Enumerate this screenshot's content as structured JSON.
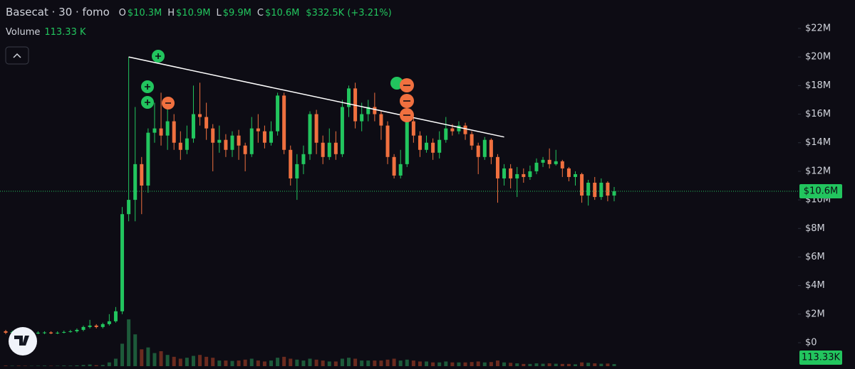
{
  "chart_data": {
    "type": "candlestick",
    "legend": {
      "symbol": "Basecat · 30 · fomo",
      "ohlc": [
        {
          "key": "O",
          "value": "$10.3M"
        },
        {
          "key": "H",
          "value": "$10.9M"
        },
        {
          "key": "L",
          "value": "$9.9M"
        },
        {
          "key": "C",
          "value": "$10.6M"
        }
      ],
      "change": "$332.5K (+3.21%)",
      "volume_title": "Volume",
      "volume_value": "113.33 K"
    },
    "ylim": [
      -1.84,
      23.99
    ],
    "yticks": [
      {
        "value": 0,
        "label": "$0"
      },
      {
        "value": 2,
        "label": "$2M"
      },
      {
        "value": 4,
        "label": "$4M"
      },
      {
        "value": 6,
        "label": "$6M"
      },
      {
        "value": 8,
        "label": "$8M"
      },
      {
        "value": 10,
        "label": "$10M"
      },
      {
        "value": 12,
        "label": "$12M"
      },
      {
        "value": 14,
        "label": "$14M"
      },
      {
        "value": 16,
        "label": "$16M"
      },
      {
        "value": 18,
        "label": "$18M"
      },
      {
        "value": 20,
        "label": "$20M"
      },
      {
        "value": 22,
        "label": "$22M"
      }
    ],
    "up_color": "#22c55e",
    "down_color": "#f0703f",
    "volume_up_color": "#1d5a3a",
    "volume_down_color": "#6b2b1f",
    "open": [
      0.8,
      0.7,
      0.75,
      0.7,
      0.6,
      0.65,
      0.7,
      0.72,
      0.65,
      0.7,
      0.75,
      0.8,
      0.9,
      1.1,
      1.2,
      1.1,
      1.3,
      1.5,
      2.2,
      9.0,
      10.0,
      12.5,
      11.0,
      14.7,
      15.0,
      14.5,
      15.5,
      14.0,
      13.5,
      14.3,
      16.0,
      15.8,
      15.0,
      14.0,
      14.2,
      13.5,
      14.5,
      13.8,
      13.2,
      15.0,
      14.8,
      14.0,
      14.8,
      17.3,
      13.5,
      11.5,
      12.5,
      13.2,
      16.0,
      14.0,
      13.0,
      14.0,
      13.2,
      16.5,
      17.8,
      15.5,
      16.0,
      16.5,
      16.0,
      15.2,
      13.0,
      11.7,
      12.5,
      15.5,
      14.5,
      13.5,
      14.0,
      13.3,
      14.2,
      15.0,
      14.8,
      15.2,
      14.6,
      13.8,
      13.0,
      14.2,
      13.0,
      11.5,
      12.2,
      11.5,
      11.8,
      11.6,
      12.0,
      12.6,
      12.8,
      12.5,
      12.7,
      12.2,
      11.6,
      11.8,
      10.3,
      11.2,
      10.2,
      11.2,
      10.3
    ],
    "high": [
      0.9,
      0.85,
      0.8,
      0.75,
      0.75,
      0.8,
      0.8,
      0.8,
      0.8,
      0.85,
      0.9,
      1.0,
      1.2,
      1.6,
      1.3,
      1.4,
      2.0,
      2.5,
      9.5,
      20.0,
      16.5,
      13.0,
      15.0,
      16.8,
      17.5,
      16.5,
      16.0,
      14.8,
      15.2,
      18.0,
      18.2,
      16.8,
      15.3,
      15.2,
      14.6,
      14.8,
      14.9,
      14.0,
      15.8,
      16.0,
      15.2,
      15.5,
      17.5,
      17.5,
      13.8,
      13.2,
      13.8,
      16.2,
      16.3,
      14.5,
      15.0,
      14.8,
      17.0,
      18.0,
      18.2,
      16.8,
      17.0,
      17.5,
      16.2,
      15.5,
      13.2,
      13.5,
      15.8,
      15.8,
      14.8,
      14.5,
      14.3,
      14.8,
      15.8,
      15.3,
      15.5,
      15.4,
      14.8,
      14.0,
      14.4,
      14.3,
      13.2,
      12.5,
      12.5,
      12.3,
      12.2,
      12.4,
      12.9,
      13.0,
      13.6,
      13.5,
      12.8,
      12.3,
      12.0,
      11.9,
      11.4,
      11.6,
      11.5,
      11.3,
      10.9
    ],
    "low": [
      0.6,
      0.6,
      0.6,
      0.5,
      0.55,
      0.6,
      0.6,
      0.6,
      0.6,
      0.65,
      0.7,
      0.7,
      0.8,
      1.0,
      1.0,
      1.0,
      1.2,
      1.4,
      2.0,
      8.5,
      8.5,
      9.0,
      10.5,
      14.0,
      13.8,
      13.5,
      13.5,
      12.8,
      13.2,
      14.0,
      15.2,
      14.2,
      12.0,
      13.3,
      13.0,
      13.0,
      12.8,
      12.0,
      13.0,
      14.0,
      13.6,
      13.8,
      14.5,
      13.2,
      11.0,
      10.0,
      11.8,
      12.8,
      13.2,
      12.5,
      12.8,
      12.8,
      13.0,
      15.8,
      15.0,
      14.8,
      15.5,
      15.5,
      14.2,
      12.5,
      11.5,
      11.5,
      12.3,
      14.0,
      13.0,
      13.3,
      12.8,
      12.9,
      14.0,
      14.5,
      14.6,
      14.2,
      13.5,
      11.8,
      12.8,
      12.5,
      9.8,
      11.0,
      10.8,
      10.2,
      11.2,
      11.4,
      11.8,
      12.3,
      12.2,
      12.4,
      11.6,
      11.3,
      11.0,
      9.8,
      9.6,
      10.0,
      10.0,
      9.9,
      9.9
    ],
    "close": [
      0.7,
      0.75,
      0.7,
      0.6,
      0.65,
      0.7,
      0.72,
      0.65,
      0.7,
      0.75,
      0.8,
      0.9,
      1.1,
      1.2,
      1.1,
      1.3,
      1.5,
      2.2,
      9.0,
      10.0,
      12.5,
      11.0,
      14.7,
      15.0,
      14.5,
      15.5,
      14.0,
      13.5,
      14.3,
      16.0,
      15.8,
      15.0,
      14.0,
      14.2,
      13.5,
      14.5,
      13.8,
      13.2,
      15.0,
      14.8,
      14.0,
      14.8,
      17.3,
      13.5,
      11.5,
      12.5,
      13.2,
      16.0,
      14.0,
      13.0,
      14.0,
      13.2,
      16.5,
      17.8,
      15.5,
      16.0,
      16.5,
      16.0,
      15.2,
      13.0,
      11.7,
      12.5,
      15.5,
      14.5,
      13.5,
      14.0,
      13.3,
      14.2,
      15.0,
      14.8,
      15.2,
      14.6,
      13.8,
      13.0,
      14.2,
      13.0,
      11.5,
      12.2,
      11.5,
      11.8,
      11.6,
      12.0,
      12.6,
      12.8,
      12.5,
      12.7,
      12.2,
      11.6,
      11.8,
      10.3,
      11.2,
      10.2,
      11.2,
      10.3,
      10.6
    ],
    "volume": [
      30,
      20,
      25,
      20,
      15,
      20,
      25,
      20,
      20,
      30,
      25,
      40,
      60,
      90,
      50,
      60,
      200,
      400,
      1200,
      2500,
      1700,
      900,
      1000,
      700,
      800,
      600,
      500,
      400,
      450,
      550,
      600,
      500,
      450,
      300,
      300,
      280,
      300,
      350,
      400,
      300,
      250,
      300,
      450,
      500,
      400,
      350,
      300,
      400,
      350,
      300,
      250,
      250,
      400,
      450,
      400,
      300,
      300,
      300,
      300,
      350,
      400,
      300,
      350,
      300,
      250,
      250,
      200,
      200,
      250,
      200,
      200,
      200,
      220,
      250,
      200,
      220,
      300,
      200,
      180,
      150,
      120,
      120,
      150,
      130,
      150,
      130,
      120,
      120,
      100,
      200,
      180,
      150,
      130,
      140,
      113.33
    ],
    "volume_ylim": [
      0,
      3800
    ],
    "last_price": {
      "value": 10.6,
      "label": "$10.6M"
    },
    "last_volume": {
      "value": 113.33,
      "label": "113.33K"
    },
    "trendline": {
      "x": [
        19,
        77
      ],
      "y": [
        20.0,
        14.4
      ],
      "color": "#ffffff"
    }
  }
}
